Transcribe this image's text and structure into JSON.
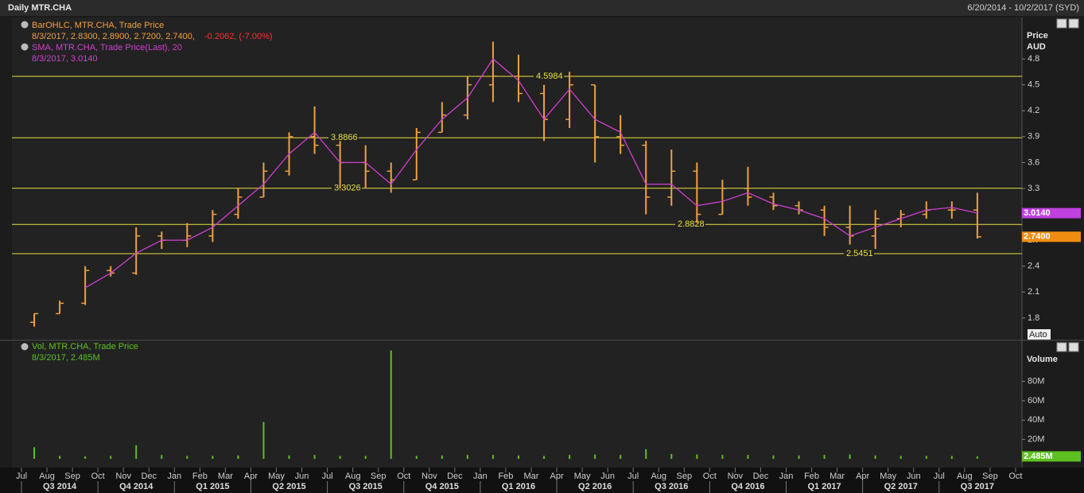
{
  "chart_data": {
    "type": "ohlc",
    "title": "Daily MTR.CHA",
    "date_range": "6/20/2014 - 10/2/2017 (SYD)",
    "x": [
      "2014-07",
      "2014-08",
      "2014-09",
      "2014-10",
      "2014-11",
      "2014-12",
      "2015-01",
      "2015-02",
      "2015-03",
      "2015-04",
      "2015-05",
      "2015-06",
      "2015-07",
      "2015-08",
      "2015-09",
      "2015-10",
      "2015-11",
      "2015-12",
      "2016-01",
      "2016-02",
      "2016-03",
      "2016-04",
      "2016-05",
      "2016-06",
      "2016-07",
      "2016-08",
      "2016-09",
      "2016-10",
      "2016-11",
      "2016-12",
      "2017-01",
      "2017-02",
      "2017-03",
      "2017-04",
      "2017-05",
      "2017-06",
      "2017-07",
      "2017-08",
      "2017-09",
      "2017-10"
    ],
    "month_labels": [
      "Jul",
      "Aug",
      "Sep",
      "Oct",
      "Nov",
      "Dec",
      "Jan",
      "Feb",
      "Mar",
      "Apr",
      "May",
      "Jun",
      "Jul",
      "Aug",
      "Sep",
      "Oct",
      "Nov",
      "Dec",
      "Jan",
      "Feb",
      "Mar",
      "Apr",
      "May",
      "Jun",
      "Jul",
      "Aug",
      "Sep",
      "Oct",
      "Nov",
      "Dec",
      "Jan",
      "Feb",
      "Mar",
      "Apr",
      "May",
      "Jun",
      "Jul",
      "Aug",
      "Sep",
      "Oct"
    ],
    "quarters": [
      "Q3 2014",
      "Q4 2014",
      "Q1 2015",
      "Q2 2015",
      "Q3 2015",
      "Q4 2015",
      "Q1 2016",
      "Q2 2016",
      "Q3 2016",
      "Q4 2016",
      "Q1 2017",
      "Q2 2017",
      "Q3 2017"
    ],
    "price_axis_label": "Price",
    "price_unit": "AUD",
    "scale_mode": "Auto",
    "ylim": [
      1.55,
      5.28
    ],
    "yticks": [
      1.8,
      2.1,
      2.4,
      2.7,
      3.0,
      3.3,
      3.6,
      3.9,
      4.2,
      4.5,
      4.8
    ],
    "ohlc_color": "#f0a040",
    "open": [
      1.75,
      1.85,
      1.97,
      2.35,
      2.32,
      2.75,
      2.7,
      2.75,
      3.0,
      3.2,
      3.5,
      3.9,
      3.8,
      3.6,
      3.5,
      3.4,
      3.95,
      4.15,
      4.5,
      4.6,
      4.4,
      4.1,
      4.5,
      3.9,
      3.8,
      3.2,
      3.5,
      3.0,
      3.3,
      3.2,
      3.1,
      3.05,
      2.85,
      2.75,
      2.95,
      3.0,
      3.05,
      3.05,
      null,
      null
    ],
    "high": [
      1.85,
      2.0,
      2.4,
      2.4,
      2.85,
      2.8,
      2.9,
      3.05,
      3.3,
      3.6,
      3.95,
      4.25,
      3.85,
      3.8,
      3.6,
      4.0,
      4.3,
      4.6,
      5.0,
      4.85,
      4.5,
      4.65,
      4.5,
      4.15,
      3.85,
      3.75,
      3.6,
      3.4,
      3.55,
      3.25,
      3.15,
      3.1,
      3.1,
      3.05,
      3.05,
      3.15,
      3.15,
      3.25,
      null,
      null
    ],
    "low": [
      1.7,
      1.85,
      1.95,
      2.28,
      2.3,
      2.6,
      2.62,
      2.68,
      2.95,
      3.2,
      3.45,
      3.7,
      3.3,
      3.3,
      3.25,
      3.4,
      3.95,
      4.1,
      4.3,
      4.3,
      3.85,
      4.0,
      3.6,
      3.7,
      3.0,
      3.1,
      2.9,
      3.0,
      3.1,
      3.05,
      3.0,
      2.75,
      2.65,
      2.6,
      2.85,
      2.95,
      2.95,
      2.72,
      null,
      null
    ],
    "close": [
      1.85,
      1.97,
      2.35,
      2.32,
      2.75,
      2.7,
      2.75,
      3.0,
      3.2,
      3.5,
      3.9,
      3.8,
      3.6,
      3.5,
      3.4,
      3.95,
      4.15,
      4.5,
      4.6,
      4.4,
      4.1,
      4.5,
      3.9,
      3.8,
      3.2,
      3.5,
      3.0,
      3.3,
      3.2,
      3.1,
      3.05,
      2.85,
      2.75,
      2.95,
      3.0,
      3.05,
      3.05,
      2.74,
      null,
      null
    ],
    "ohlc_legend": [
      "BarOHLC, MTR.CHA, Trade Price",
      "8/3/2017, 2.8300, 2.8900, 2.7200, 2.7400,"
    ],
    "ohlc_change": "-0.2062, (-7.00%)",
    "sma": {
      "name": "SMA, MTR.CHA, Trade Price(Last),  20",
      "last": "8/3/2017, 3.0140",
      "color": "#d040d0",
      "values": [
        null,
        null,
        2.15,
        2.32,
        2.55,
        2.7,
        2.7,
        2.85,
        3.1,
        3.35,
        3.7,
        3.95,
        3.6,
        3.6,
        3.35,
        3.75,
        4.1,
        4.35,
        4.8,
        4.55,
        4.1,
        4.45,
        4.1,
        3.95,
        3.35,
        3.35,
        3.1,
        3.15,
        3.25,
        3.12,
        3.05,
        2.95,
        2.75,
        2.85,
        2.95,
        3.05,
        3.08,
        3.014,
        null,
        null
      ]
    },
    "levels": [
      {
        "value": 4.5984,
        "label": "4.5984"
      },
      {
        "value": 3.8866,
        "label": "3.8866"
      },
      {
        "value": 3.3026,
        "label": "3.3026"
      },
      {
        "value": 2.8828,
        "label": "2.8828"
      },
      {
        "value": 2.5451,
        "label": "2.5451"
      }
    ],
    "level_color": "#e8e040",
    "last_labels": [
      {
        "value": 3.014,
        "label": "3.0140",
        "color": "#c040e0"
      },
      {
        "value": 2.74,
        "label": "2.7400",
        "color": "#f08c10"
      }
    ],
    "volume": {
      "name": "Vol, MTR.CHA, Trade Price",
      "last": "8/3/2017, 2.485M",
      "axis_label": "Volume",
      "color": "#5cc020",
      "ylim": [
        0,
        115000000
      ],
      "yticks": [
        {
          "value": 20000000,
          "label": "20M"
        },
        {
          "value": 40000000,
          "label": "40M"
        },
        {
          "value": 60000000,
          "label": "60M"
        },
        {
          "value": 80000000,
          "label": "80M"
        }
      ],
      "values": [
        12000000,
        3000000,
        2500000,
        3000000,
        14000000,
        4000000,
        3000000,
        3000000,
        3500000,
        38000000,
        3500000,
        4000000,
        3000000,
        3000000,
        112000000,
        3000000,
        3500000,
        4000000,
        4000000,
        3500000,
        3000000,
        4000000,
        4500000,
        4000000,
        10000000,
        5000000,
        4500000,
        4000000,
        4000000,
        3500000,
        3500000,
        4000000,
        4500000,
        3500000,
        3000000,
        3000000,
        3000000,
        2485000,
        null,
        null
      ],
      "last_label": {
        "value": 2485000,
        "label": "2.485M"
      }
    }
  }
}
